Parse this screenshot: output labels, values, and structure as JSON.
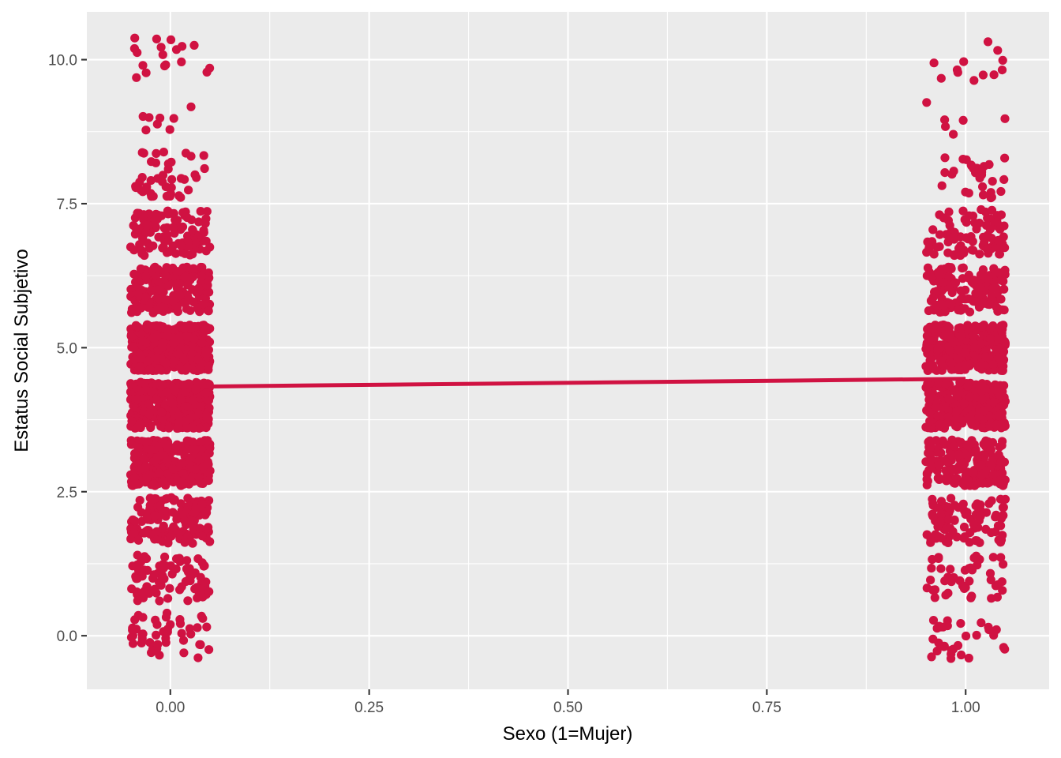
{
  "chart_data": {
    "type": "scatter",
    "title": "",
    "xlabel": "Sexo (1=Mujer)",
    "ylabel": "Estatus Social Subjetivo",
    "xlim": [
      -0.105,
      1.105
    ],
    "ylim": [
      -0.93,
      10.83
    ],
    "x_ticks": [
      0.0,
      0.25,
      0.5,
      0.75,
      1.0
    ],
    "x_tick_labels": [
      "0.00",
      "0.25",
      "0.50",
      "0.75",
      "1.00"
    ],
    "y_ticks": [
      0.0,
      2.5,
      5.0,
      7.5,
      10.0
    ],
    "y_tick_labels": [
      "0.0",
      "2.5",
      "5.0",
      "7.5",
      "10.0"
    ],
    "grid": true,
    "point_color": "#d01242",
    "line_color": "#d01242",
    "panel_color": "#ebebeb",
    "jitter": {
      "x": 0.05,
      "y": 0.4
    },
    "series": [
      {
        "group": 0,
        "counts": {
          "0": 45,
          "1": 75,
          "2": 140,
          "3": 290,
          "4": 420,
          "5": 420,
          "6": 190,
          "7": 110,
          "8": 40,
          "9": 8,
          "10": 18
        }
      },
      {
        "group": 1,
        "counts": {
          "0": 30,
          "1": 45,
          "2": 95,
          "3": 200,
          "4": 300,
          "5": 310,
          "6": 150,
          "7": 85,
          "8": 28,
          "9": 6,
          "10": 12
        }
      }
    ],
    "regression": {
      "x": [
        0,
        1
      ],
      "y": [
        4.32,
        4.46
      ]
    }
  }
}
